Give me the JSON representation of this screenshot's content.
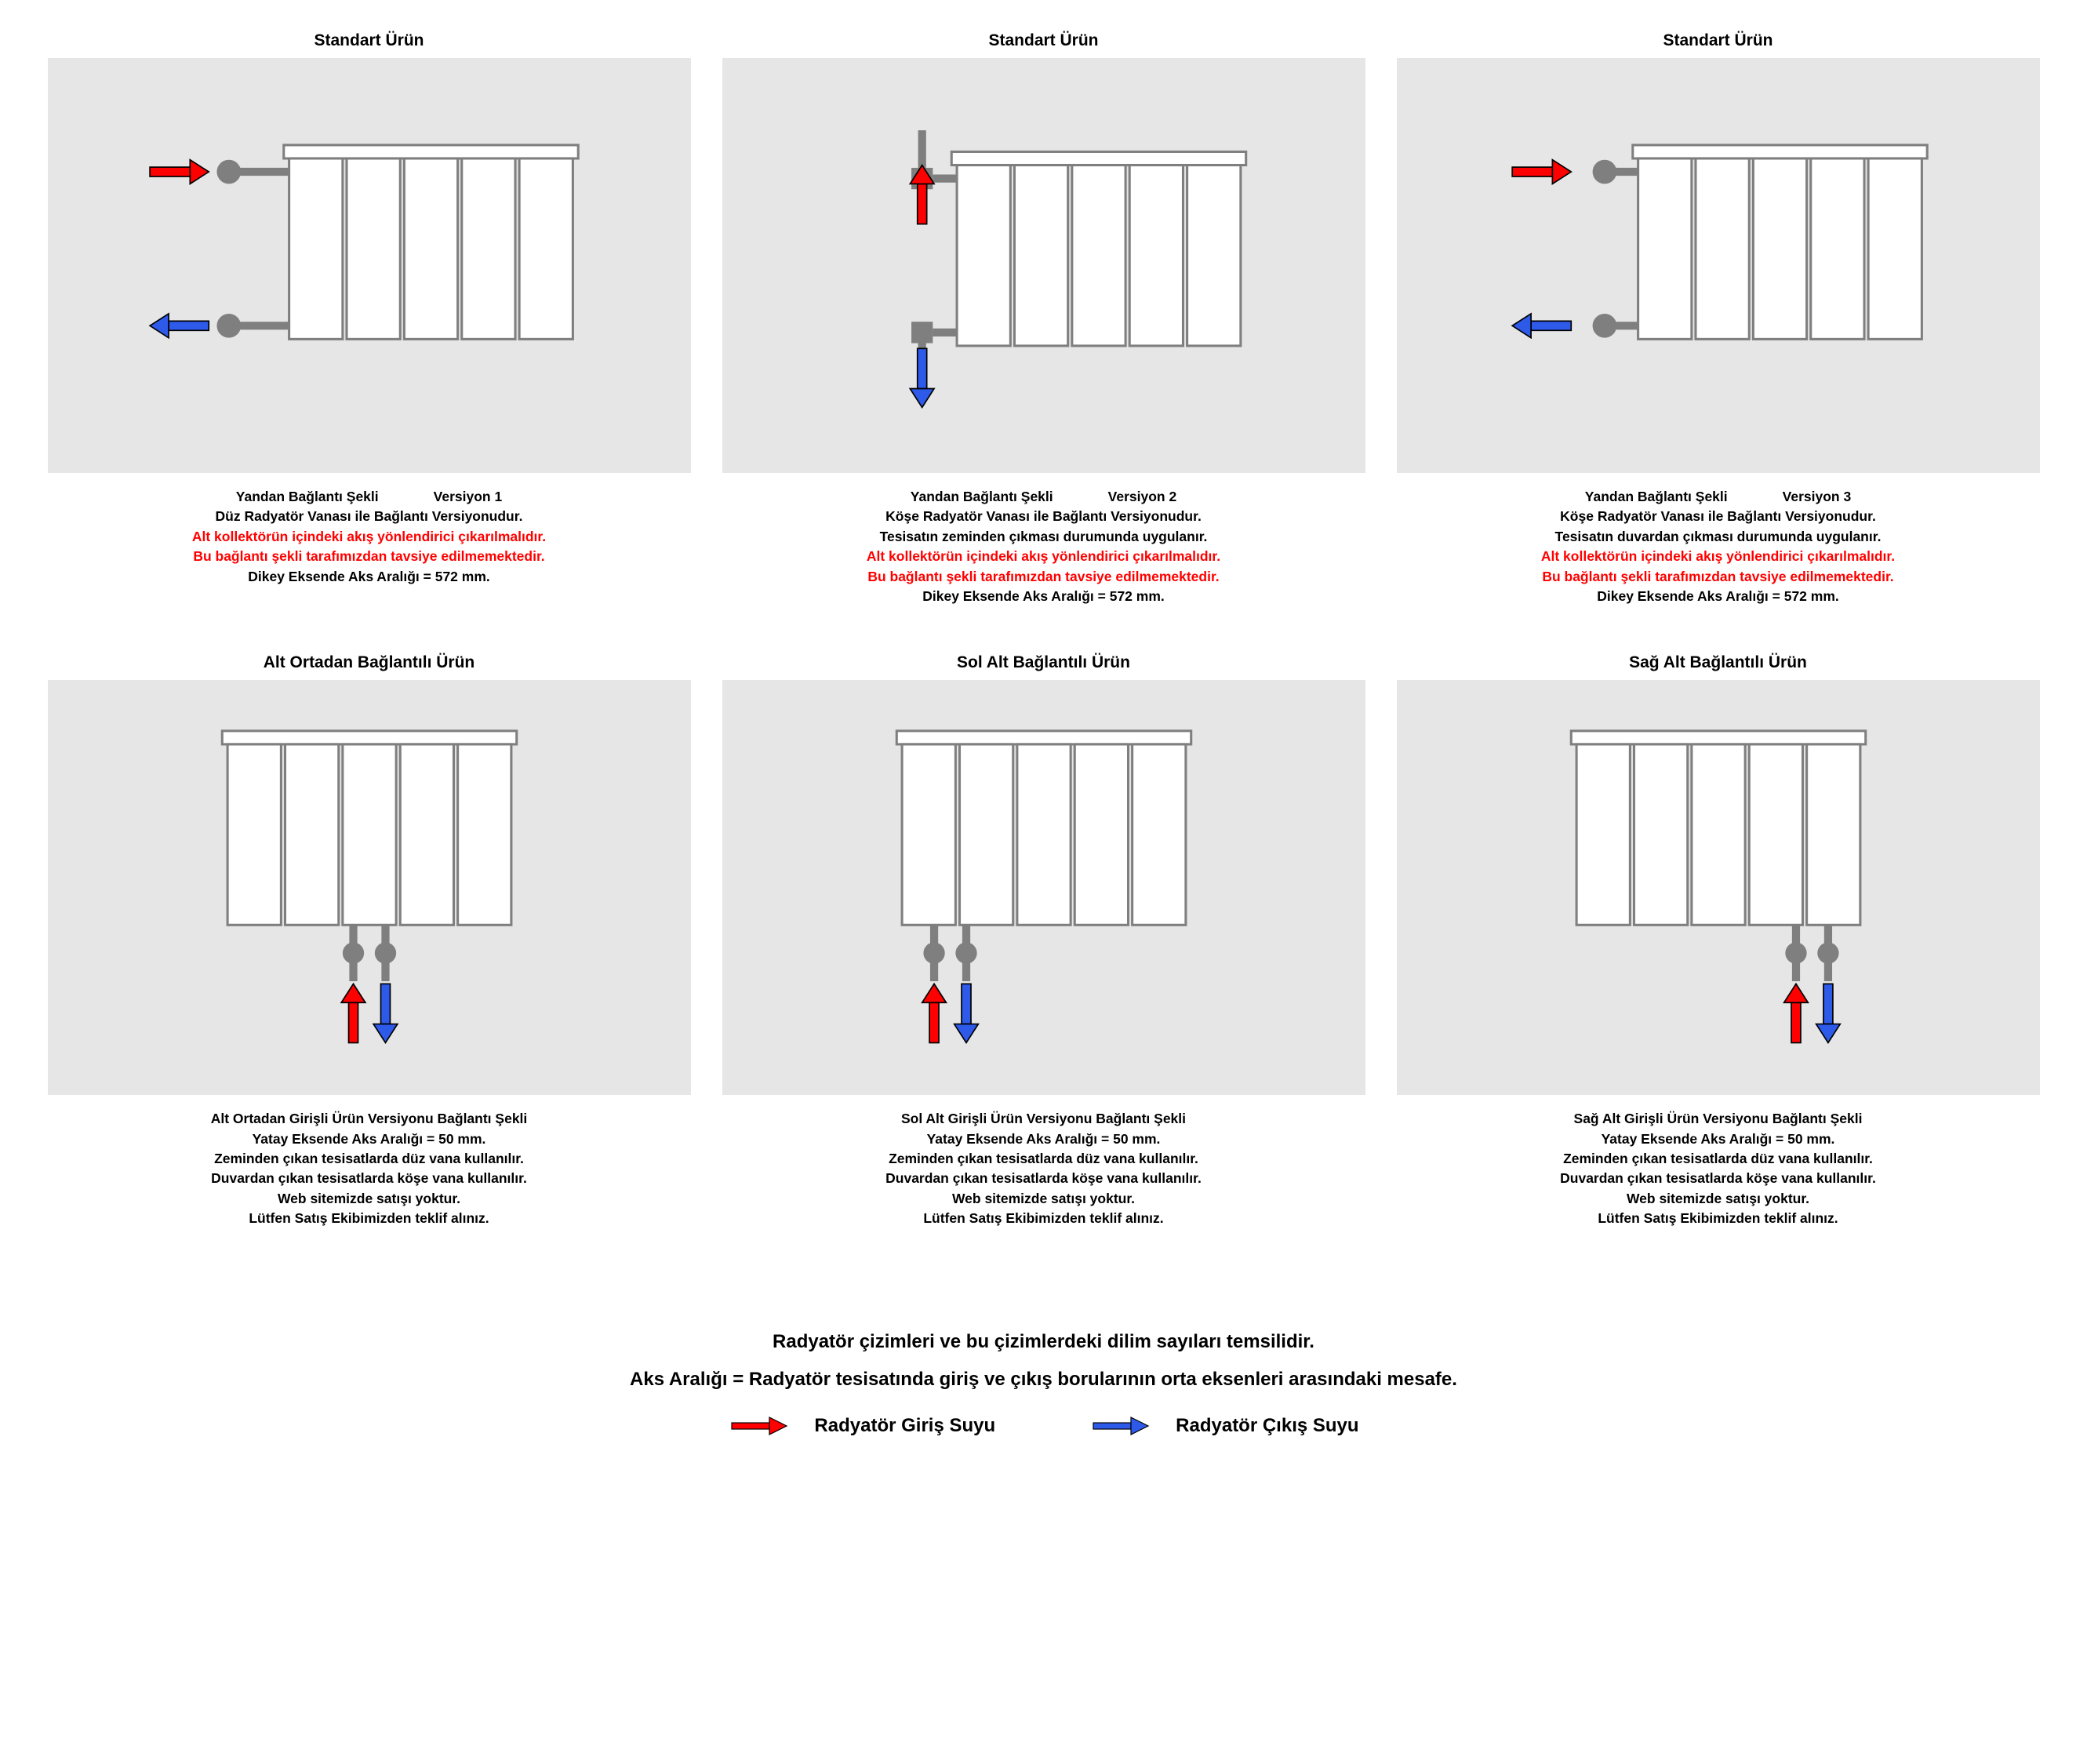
{
  "colors": {
    "panel_bg": "#e6e6e6",
    "stroke": "#7f7f7f",
    "red": "#ff0000",
    "blue": "#2e5aea",
    "text": "#000000",
    "white": "#ffffff"
  },
  "radiator": {
    "sections": 5,
    "section_w": 40,
    "section_h": 135,
    "section_gap": 3,
    "border_color": "#7f7f7f",
    "fill": "#ffffff"
  },
  "arrow": {
    "shaft_w": 28,
    "shaft_h": 8,
    "head_w": 14,
    "head_h": 18
  },
  "panels": [
    {
      "title": "Standart  Ürün",
      "variant": "side-left-straight",
      "captions": [
        {
          "split": [
            "Yandan  Bağlantı  Şekli",
            "Versiyon  1"
          ]
        },
        {
          "text": "Düz  Radyatör  Vanası  ile  Bağlantı  Versiyonudur."
        },
        {
          "text": "Alt kollektörün içindeki akış yönlendirici çıkarılmalıdır.",
          "red": true
        },
        {
          "text": "Bu bağlantı şekli  tarafımızdan tavsiye edilmemektedir.",
          "red": true
        },
        {
          "text": "Dikey  Eksende  Aks  Aralığı = 572 mm."
        }
      ]
    },
    {
      "title": "Standart  Ürün",
      "variant": "corner-vertical",
      "captions": [
        {
          "split": [
            "Yandan  Bağlantı  Şekli",
            "Versiyon  2"
          ]
        },
        {
          "text": "Köşe  Radyatör  Vanası  ile  Bağlantı  Versiyonudur."
        },
        {
          "text": "Tesisatın  zeminden  çıkması  durumunda  uygulanır."
        },
        {
          "text": "Alt kollektörün içindeki akış yönlendirici çıkarılmalıdır.",
          "red": true
        },
        {
          "text": "Bu bağlantı şekli  tarafımızdan tavsiye edilmemektedir.",
          "red": true
        },
        {
          "text": "Dikey  Eksende  Aks  Aralığı = 572 mm."
        }
      ]
    },
    {
      "title": "Standart  Ürün",
      "variant": "side-left-plain",
      "captions": [
        {
          "split": [
            "Yandan  Bağlantı  Şekli",
            "Versiyon  3"
          ]
        },
        {
          "text": "Köşe  Radyatör  Vanası  ile  Bağlantı  Versiyonudur."
        },
        {
          "text": "Tesisatın  duvardan  çıkması  durumunda  uygulanır."
        },
        {
          "text": "Alt kollektörün içindeki akış yönlendirici çıkarılmalıdır.",
          "red": true
        },
        {
          "text": "Bu bağlantı şekli  tarafımızdan tavsiye edilmemektedir.",
          "red": true
        },
        {
          "text": "Dikey  Eksende  Aks  Aralığı = 572 mm."
        }
      ]
    },
    {
      "title": "Alt  Ortadan  Bağlantılı  Ürün",
      "variant": "bottom-center",
      "captions": [
        {
          "text": "Alt  Ortadan  Girişli  Ürün  Versiyonu  Bağlantı  Şekli"
        },
        {
          "text": "Yatay  Eksende  Aks  Aralığı  =  50  mm."
        },
        {
          "text": "Zeminden  çıkan  tesisatlarda  düz  vana  kullanılır."
        },
        {
          "text": "Duvardan  çıkan  tesisatlarda  köşe  vana  kullanılır."
        },
        {
          "text": "Web  sitemizde  satışı  yoktur."
        },
        {
          "text": "Lütfen  Satış  Ekibimizden  teklif  alınız."
        }
      ]
    },
    {
      "title": "Sol  Alt  Bağlantılı  Ürün",
      "variant": "bottom-left",
      "captions": [
        {
          "text": "Sol  Alt  Girişli  Ürün  Versiyonu  Bağlantı  Şekli"
        },
        {
          "text": "Yatay  Eksende  Aks  Aralığı  =  50  mm."
        },
        {
          "text": "Zeminden  çıkan  tesisatlarda  düz  vana  kullanılır."
        },
        {
          "text": "Duvardan  çıkan  tesisatlarda  köşe  vana  kullanılır."
        },
        {
          "text": "Web  sitemizde  satışı  yoktur."
        },
        {
          "text": "Lütfen  Satış  Ekibimizden  teklif  alınız."
        }
      ]
    },
    {
      "title": "Sağ  Alt  Bağlantılı  Ürün",
      "variant": "bottom-right",
      "captions": [
        {
          "text": "Sağ  Alt  Girişli  Ürün  Versiyonu  Bağlantı  Şekli"
        },
        {
          "text": "Yatay  Eksende  Aks  Aralığı  =  50  mm."
        },
        {
          "text": "Zeminden  çıkan  tesisatlarda  düz  vana  kullanılır."
        },
        {
          "text": "Duvardan  çıkan  tesisatlarda  köşe  vana  kullanılır."
        },
        {
          "text": "Web  sitemizde  satışı  yoktur."
        },
        {
          "text": "Lütfen  Satış  Ekibimizden  teklif  alınız."
        }
      ]
    }
  ],
  "footer": {
    "line1": "Radyatör  çizimleri  ve  bu  çizimlerdeki  dilim  sayıları  temsilidir.",
    "line2": "Aks  Aralığı  =  Radyatör  tesisatında  giriş  ve  çıkış  borularının  orta  eksenleri  arasındaki  mesafe.",
    "legend_in": "Radyatör  Giriş  Suyu",
    "legend_out": "Radyatör  Çıkış  Suyu"
  }
}
